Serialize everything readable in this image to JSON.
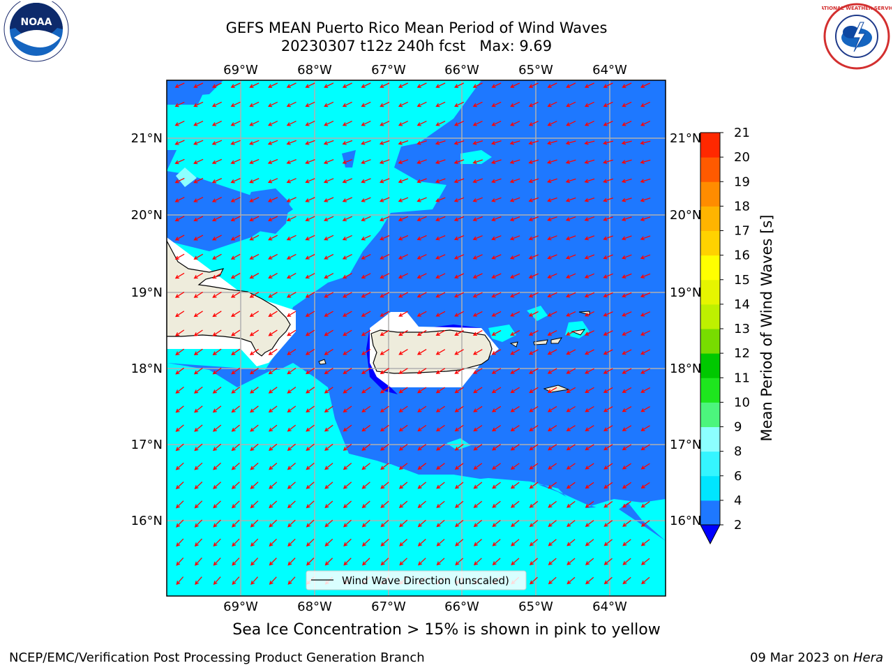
{
  "header": {
    "title_line1": "GEFS MEAN Puerto Rico Mean Period of Wind Waves",
    "title_line2": "20230307 t12z 240h fcst   Max: 9.69"
  },
  "logos": {
    "left": {
      "text": "NOAA",
      "ring_text": "NATIONAL OCEANIC AND ATMOSPHERIC ADMINISTRATION · U.S. DEPARTMENT OF COMMERCE"
    },
    "right": {
      "ring_text": "NATIONAL WEATHER SERVICE"
    }
  },
  "map": {
    "lon_labels": [
      "69°W",
      "68°W",
      "67°W",
      "66°W",
      "65°W",
      "64°W"
    ],
    "lat_labels": [
      "21°N",
      "20°N",
      "19°N",
      "18°N",
      "17°N",
      "16°N"
    ],
    "legend_label": "Wind Wave Direction (unscaled)"
  },
  "colorbar": {
    "label": "Mean Period of Wind Waves [s]",
    "ticks": [
      "2",
      "4",
      "6",
      "8",
      "9",
      "10",
      "11",
      "12",
      "13",
      "14",
      "15",
      "16",
      "17",
      "18",
      "19",
      "20",
      "21"
    ],
    "colors": [
      "#0000ff",
      "#1e78ff",
      "#00e5ff",
      "#35f5ff",
      "#8cffff",
      "#4cf57d",
      "#1ee61e",
      "#00c800",
      "#78dc00",
      "#bef000",
      "#e6f500",
      "#ffff00",
      "#ffd200",
      "#ffb400",
      "#ff8c00",
      "#ff5a00",
      "#ff2800",
      "#ff0000"
    ]
  },
  "subtitle": "Sea Ice Concentration > 15% is shown in pink to yellow",
  "footer": {
    "left": "NCEP/EMC/Verification Post Processing Product Generation Branch",
    "right_prefix": "09 Mar 2023 on ",
    "right_host": "Hera"
  }
}
